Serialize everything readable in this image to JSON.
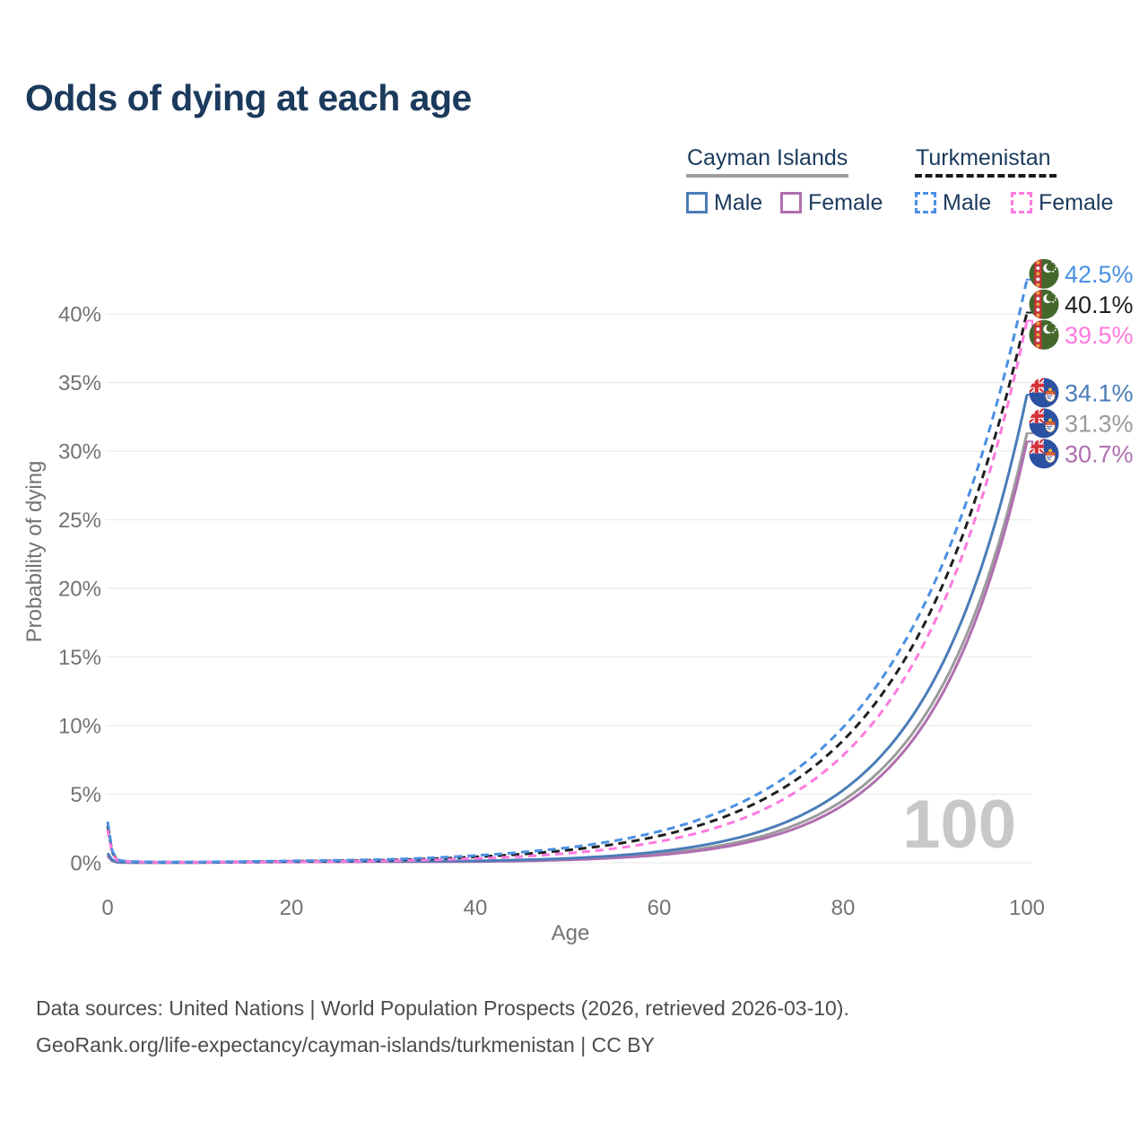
{
  "title": "Odds of dying at each age",
  "legend": {
    "groups": [
      {
        "label": "Cayman Islands",
        "line_style": "solid",
        "underline_color": "#9e9e9e",
        "items": [
          {
            "label": "Male",
            "color": "#4a7db8"
          },
          {
            "label": "Female",
            "color": "#b06fb0"
          }
        ]
      },
      {
        "label": "Turkmenistan",
        "line_style": "dashed",
        "underline_color": "#1a1a1a",
        "items": [
          {
            "label": "Male",
            "color": "#4a90e2"
          },
          {
            "label": "Female",
            "color": "#ff7ade"
          }
        ]
      }
    ]
  },
  "age_counter": "100",
  "footer": {
    "line1": "Data sources: United Nations | World Population Prospects (2026, retrieved 2026-03-10).",
    "line2": "GeoRank.org/life-expectancy/cayman-islands/turkmenistan | CC BY"
  },
  "chart_data": {
    "type": "line",
    "title": "Odds of dying at each age",
    "xlabel": "Age",
    "ylabel": "Probability of dying",
    "x_ticks": [
      0,
      20,
      40,
      60,
      80,
      100
    ],
    "y_ticks_pct": [
      0,
      5,
      10,
      15,
      20,
      25,
      30,
      35,
      40
    ],
    "xlim": [
      0,
      100
    ],
    "ylim_pct": [
      0,
      43.5
    ],
    "grid": "horizontal",
    "legend_position": "top-right",
    "ages": [
      0,
      1,
      2,
      5,
      10,
      15,
      20,
      25,
      30,
      35,
      40,
      45,
      50,
      55,
      60,
      65,
      70,
      75,
      80,
      85,
      90,
      95,
      100
    ],
    "series": [
      {
        "name": "Turkmenistan Male",
        "country": "Turkmenistan",
        "sex": "Male",
        "color": "#4a90e2",
        "dashed": true,
        "flag": "turkmenistan",
        "end_label": "42.5%",
        "values_pct": [
          3.0,
          0.25,
          0.1,
          0.06,
          0.06,
          0.09,
          0.14,
          0.18,
          0.24,
          0.35,
          0.53,
          0.77,
          1.1,
          1.59,
          2.29,
          3.3,
          4.75,
          6.85,
          9.87,
          14.22,
          20.49,
          29.52,
          42.5
        ]
      },
      {
        "name": "Turkmenistan Both sexes",
        "country": "Turkmenistan",
        "sex": "Both",
        "color": "#1f1f1f",
        "dashed": true,
        "flag": "turkmenistan",
        "end_label": "40.1%",
        "values_pct": [
          2.7,
          0.22,
          0.09,
          0.05,
          0.05,
          0.07,
          0.11,
          0.14,
          0.19,
          0.28,
          0.43,
          0.63,
          0.92,
          1.34,
          1.96,
          2.86,
          4.18,
          6.1,
          8.91,
          13.01,
          19.0,
          27.74,
          40.1
        ]
      },
      {
        "name": "Turkmenistan Female",
        "country": "Turkmenistan",
        "sex": "Female",
        "color": "#ff7ade",
        "dashed": true,
        "flag": "turkmenistan",
        "end_label": "39.5%",
        "values_pct": [
          2.4,
          0.19,
          0.08,
          0.04,
          0.04,
          0.05,
          0.08,
          0.1,
          0.14,
          0.21,
          0.31,
          0.46,
          0.69,
          1.03,
          1.55,
          2.32,
          3.48,
          5.22,
          7.83,
          11.74,
          17.6,
          26.39,
          39.5
        ]
      },
      {
        "name": "Cayman Islands Male",
        "country": "Cayman Islands",
        "sex": "Male",
        "color": "#4a7db8",
        "dashed": false,
        "flag": "cayman-islands",
        "end_label": "34.1%",
        "values_pct": [
          0.7,
          0.06,
          0.03,
          0.02,
          0.03,
          0.06,
          0.1,
          0.11,
          0.12,
          0.13,
          0.14,
          0.21,
          0.32,
          0.51,
          0.82,
          1.31,
          2.08,
          3.32,
          5.29,
          8.44,
          13.45,
          21.44,
          34.1
        ]
      },
      {
        "name": "Cayman Islands Both sexes",
        "country": "Cayman Islands",
        "sex": "Both",
        "color": "#9b9b9b",
        "dashed": false,
        "flag": "cayman-islands",
        "end_label": "31.3%",
        "values_pct": [
          0.6,
          0.05,
          0.03,
          0.02,
          0.02,
          0.05,
          0.08,
          0.09,
          0.1,
          0.1,
          0.11,
          0.16,
          0.25,
          0.41,
          0.66,
          1.07,
          1.73,
          2.81,
          4.55,
          7.37,
          11.94,
          19.33,
          31.3
        ]
      },
      {
        "name": "Cayman Islands Female",
        "country": "Cayman Islands",
        "sex": "Female",
        "color": "#b06fb0",
        "dashed": false,
        "flag": "cayman-islands",
        "end_label": "30.7%",
        "values_pct": [
          0.5,
          0.04,
          0.02,
          0.015,
          0.02,
          0.04,
          0.06,
          0.07,
          0.08,
          0.08,
          0.09,
          0.13,
          0.21,
          0.35,
          0.57,
          0.94,
          1.55,
          2.55,
          4.2,
          6.92,
          11.38,
          18.72,
          30.7
        ]
      }
    ]
  }
}
